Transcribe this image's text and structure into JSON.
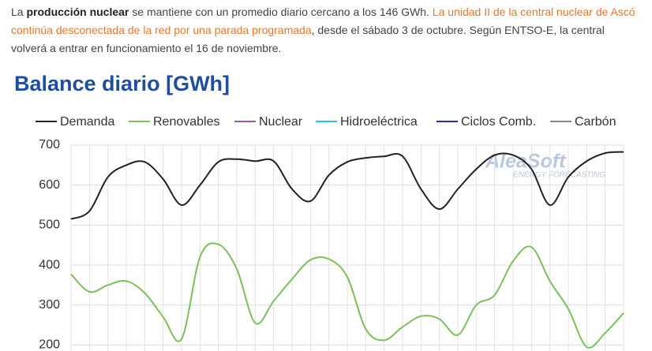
{
  "paragraph": {
    "segments": [
      "La ",
      "producción nuclear",
      " se mantiene con un promedio diario cercano a los 146 GWh. ",
      "La unidad II de la central nuclear de Ascó continúa desconectada de la red por una parada programada",
      ", desde el sábado 3 de octubre. Según ENTSO-E, la central volverá a entrar en funcionamiento el 16 de noviembre."
    ]
  },
  "chart_data": {
    "type": "line",
    "title": "Balance diario [GWh]",
    "annotations": [
      "AleaSoft",
      "ENERGY FORECASTING"
    ],
    "categories": [
      null,
      null,
      null,
      null,
      null,
      null,
      null,
      null,
      null,
      null,
      null,
      null,
      null,
      null,
      null,
      null,
      null,
      null,
      null,
      null,
      null,
      null,
      null,
      null,
      null,
      null,
      null,
      null,
      null,
      null,
      null
    ],
    "series": [
      {
        "name": "Demanda",
        "color": "#222222",
        "values": [
          515,
          535,
          620,
          650,
          658,
          615,
          550,
          600,
          658,
          665,
          660,
          660,
          590,
          560,
          625,
          658,
          668,
          672,
          672,
          590,
          540,
          590,
          640,
          675,
          675,
          640,
          550,
          620,
          660,
          680,
          683
        ]
      },
      {
        "name": "Renovables",
        "color": "#7dc05a",
        "values": [
          377,
          333,
          350,
          360,
          330,
          270,
          215,
          420,
          452,
          390,
          255,
          310,
          365,
          413,
          415,
          370,
          240,
          212,
          245,
          272,
          265,
          225,
          300,
          325,
          410,
          445,
          360,
          290,
          195,
          230,
          280
        ]
      },
      {
        "name": "Nuclear",
        "color": "#9b59b6",
        "values": [
          null,
          null,
          null,
          null,
          null,
          null,
          null,
          null,
          null,
          null,
          null,
          null,
          null,
          null,
          null,
          null,
          null,
          null,
          null,
          null,
          null,
          null,
          null,
          null,
          null,
          null,
          null,
          null,
          null,
          null,
          null
        ]
      },
      {
        "name": "Hidroeléctrica",
        "color": "#29c5e6",
        "values": [
          null,
          null,
          null,
          null,
          null,
          null,
          null,
          null,
          null,
          null,
          null,
          null,
          null,
          null,
          null,
          null,
          null,
          null,
          null,
          null,
          null,
          null,
          null,
          null,
          null,
          null,
          null,
          null,
          null,
          null,
          null
        ]
      },
      {
        "name": "Ciclos Comb.",
        "color": "#2b2bb5",
        "values": [
          null,
          null,
          null,
          null,
          null,
          null,
          null,
          null,
          null,
          null,
          null,
          null,
          null,
          null,
          null,
          null,
          null,
          null,
          null,
          null,
          null,
          null,
          null,
          null,
          null,
          null,
          null,
          null,
          null,
          null,
          null
        ]
      },
      {
        "name": "Carbón",
        "color": "#888888",
        "values": [
          null,
          null,
          null,
          null,
          null,
          null,
          null,
          null,
          null,
          null,
          null,
          null,
          null,
          null,
          null,
          null,
          null,
          null,
          null,
          null,
          null,
          null,
          null,
          null,
          null,
          null,
          null,
          null,
          null,
          null,
          null
        ]
      }
    ],
    "ylim": [
      185,
      700
    ],
    "yticks": [
      200,
      300,
      400,
      500,
      600,
      700
    ],
    "grid": true,
    "legend": "top"
  }
}
